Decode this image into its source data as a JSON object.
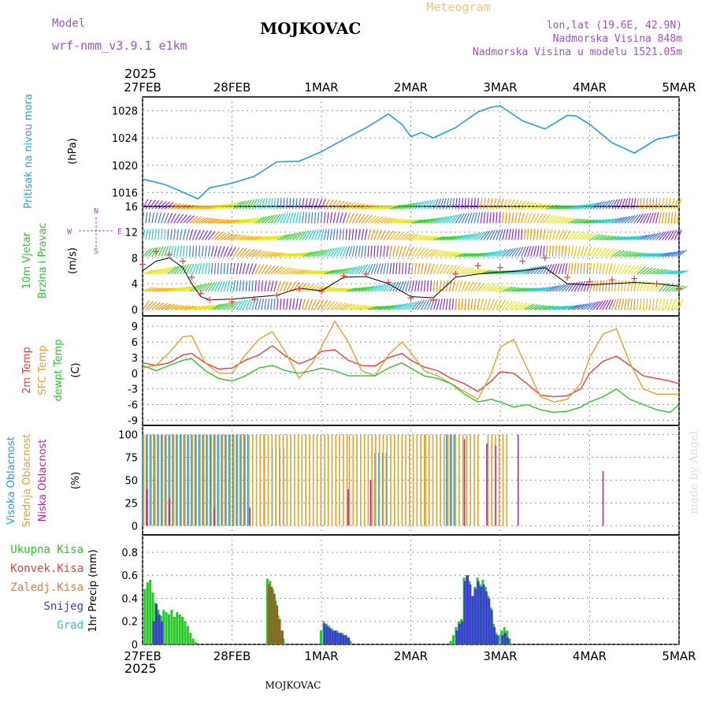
{
  "header": {
    "station": "MOJKOVAC",
    "meteogram_label": "Meteogram",
    "model_label": "Model",
    "model_name": "wrf-nmm_v3.9.1 e1km",
    "coords": "lon,lat (19.6E, 42.9N)",
    "altitude": "Nadmorska Visina 848m",
    "model_altitude": "Nadmorska Visina u modelu 1521.05m",
    "year_top": "2025",
    "year_bottom": "2025",
    "footer_station": "MOJKOVAC",
    "credit": "made by Angel"
  },
  "colors": {
    "pressure": "#1ea0e6",
    "temp2m": "#f03c3c",
    "sfc": "#e6a028",
    "dew": "#28c828",
    "high_cloud": "#1ea0e6",
    "mid_cloud": "#e6a028",
    "low_cloud": "#c81e96",
    "model": "#a050d2",
    "meteogram": "#e6c878",
    "total_precip": "#28c828",
    "conv_precip": "#f03c3c",
    "frz_precip": "#f07832",
    "snow": "#3c3cdc",
    "hail": "#28c8c8"
  },
  "chart_data": [
    {
      "type": "line",
      "panel": "pressure",
      "ylabel": [
        "Pritisak na nivou mora",
        "(hPa)"
      ],
      "yticks": [
        1016,
        1020,
        1024,
        1028
      ],
      "ylim": [
        1014,
        1030
      ],
      "xticks": [
        "27FEB",
        "28FEB",
        "1MAR",
        "2MAR",
        "3MAR",
        "4MAR",
        "5MAR"
      ],
      "x_days": [
        0,
        0.25,
        0.5,
        0.62,
        0.75,
        1.0,
        1.25,
        1.5,
        1.75,
        2.0,
        2.25,
        2.5,
        2.75,
        2.9,
        3.0,
        3.12,
        3.25,
        3.5,
        3.75,
        3.9,
        4.0,
        4.25,
        4.5,
        4.75,
        4.85,
        5.0,
        5.25,
        5.5,
        5.75,
        6.0
      ],
      "series": [
        {
          "values": [
            1018.0,
            1017.2,
            1015.8,
            1015.1,
            1016.7,
            1017.4,
            1018.4,
            1020.5,
            1020.6,
            1022.0,
            1023.8,
            1025.5,
            1027.5,
            1026.0,
            1024.2,
            1024.8,
            1024.0,
            1025.5,
            1027.8,
            1028.5,
            1028.7,
            1026.5,
            1025.3,
            1027.3,
            1027.2,
            1026.0,
            1023.3,
            1021.8,
            1023.8,
            1024.5
          ]
        }
      ]
    },
    {
      "type": "line",
      "panel": "wind",
      "ylabel": [
        "10m Vjetar",
        "Brzina i Pravac",
        "(m/s)"
      ],
      "compass": [
        "N",
        "W",
        "E",
        "S"
      ],
      "yticks": [
        0,
        4,
        8,
        12,
        16
      ],
      "ylim": [
        -1,
        16
      ],
      "x_days": [
        0,
        0.15,
        0.3,
        0.45,
        0.55,
        0.65,
        0.75,
        1.0,
        1.25,
        1.5,
        1.75,
        2.0,
        2.25,
        2.5,
        2.75,
        3.0,
        3.25,
        3.5,
        3.75,
        4.0,
        4.25,
        4.5,
        4.75,
        5.0,
        5.25,
        5.5,
        5.75,
        6.0
      ],
      "series": [
        {
          "name": "mean",
          "values": [
            6.0,
            7.5,
            8.0,
            6.5,
            4.0,
            2.0,
            1.5,
            1.6,
            1.9,
            2.2,
            3.3,
            2.9,
            5.0,
            5.1,
            4.0,
            2.0,
            1.8,
            5.0,
            5.5,
            5.8,
            6.0,
            6.5,
            4.0,
            3.8,
            4.0,
            4.2,
            4.0,
            3.6
          ]
        },
        {
          "name": "gust",
          "values": [
            7.0,
            9.0,
            8.5,
            7.5,
            5.0,
            2.5,
            1.5,
            1.2,
            1.6,
            2.2,
            3.2,
            2.8,
            5.2,
            5.5,
            4.2,
            1.8,
            1.5,
            5.5,
            6.8,
            6.5,
            7.5,
            8.0,
            5.0,
            4.3,
            4.6,
            4.8,
            4.0,
            3.2
          ]
        }
      ]
    },
    {
      "type": "line",
      "panel": "temperature",
      "ylabel": [
        "2m Temp",
        "SFC Temp",
        "dewpt Temp",
        "(C)"
      ],
      "yticks": [
        -9,
        -6,
        -3,
        0,
        3,
        6,
        9
      ],
      "ylim": [
        -10,
        11
      ],
      "x_days": [
        0,
        0.15,
        0.3,
        0.45,
        0.55,
        0.7,
        0.85,
        1.0,
        1.15,
        1.3,
        1.45,
        1.6,
        1.75,
        1.9,
        2.0,
        2.15,
        2.3,
        2.45,
        2.6,
        2.75,
        2.9,
        3.0,
        3.15,
        3.3,
        3.45,
        3.6,
        3.75,
        3.9,
        4.0,
        4.15,
        4.3,
        4.45,
        4.6,
        4.75,
        4.9,
        5.0,
        5.15,
        5.3,
        5.45,
        5.6,
        5.75,
        5.9,
        6.0
      ],
      "series": [
        {
          "name": "2m Temp",
          "values": [
            2.0,
            1.5,
            2.0,
            3.5,
            3.8,
            2.0,
            0.8,
            1.0,
            2.5,
            3.5,
            5.3,
            3.3,
            1.8,
            2.8,
            4.2,
            4.5,
            2.5,
            1.5,
            1.4,
            3.0,
            3.8,
            2.5,
            1.2,
            0.5,
            -1.0,
            -2.0,
            -3.5,
            -1.5,
            0.3,
            0.0,
            -2.0,
            -4.2,
            -4.5,
            -4.3,
            -3.0,
            0.0,
            2.3,
            3.3,
            1.5,
            -0.5,
            -1.0,
            -1.5,
            -2.0
          ]
        },
        {
          "name": "SFC Temp",
          "values": [
            1.0,
            1.5,
            4.0,
            7.0,
            7.2,
            2.0,
            0.0,
            0.0,
            3.5,
            6.5,
            8.0,
            4.0,
            -1.0,
            2.0,
            5.0,
            10.0,
            6.0,
            0.5,
            -0.5,
            3.5,
            6.0,
            4.0,
            0.5,
            -0.5,
            -2.0,
            -3.5,
            -5.0,
            0.0,
            5.0,
            6.5,
            1.0,
            -4.5,
            -5.5,
            -5.0,
            -2.0,
            3.0,
            7.5,
            8.5,
            2.0,
            -3.0,
            -4.0,
            -4.0,
            -4.0
          ]
        },
        {
          "name": "dewpt Temp",
          "values": [
            1.5,
            0.5,
            1.5,
            2.5,
            2.8,
            0.5,
            -1.0,
            -1.5,
            -0.5,
            1.0,
            1.5,
            0.5,
            0.0,
            0.5,
            1.0,
            0.5,
            -0.5,
            -0.5,
            -0.5,
            1.0,
            2.0,
            1.0,
            -0.5,
            -1.0,
            -2.0,
            -4.0,
            -5.5,
            -5.0,
            -5.5,
            -6.5,
            -6.0,
            -7.0,
            -7.5,
            -7.3,
            -6.5,
            -5.5,
            -4.5,
            -3.0,
            -5.0,
            -6.0,
            -7.0,
            -7.5,
            -6.0
          ]
        }
      ]
    },
    {
      "type": "bar",
      "panel": "cloud",
      "ylabel": [
        "Visoka Oblacnost",
        "Srednja Oblacnost",
        "Niska Oblacnost",
        "(%)"
      ],
      "yticks": [
        0,
        25,
        50,
        75,
        100
      ],
      "ylim": [
        -10,
        110
      ],
      "series": [
        {
          "name": "Visoka Oblacnost",
          "segments": [
            [
              0.0,
              1.2,
              100
            ],
            [
              1.45,
              1.6,
              85
            ],
            [
              2.6,
              2.75,
              80
            ],
            [
              3.4,
              3.5,
              100
            ]
          ]
        },
        {
          "name": "Srednja Oblacnost",
          "segments": [
            [
              0.0,
              1.35,
              100
            ],
            [
              1.35,
              2.3,
              100
            ],
            [
              2.3,
              3.15,
              100
            ],
            [
              3.15,
              3.75,
              100
            ],
            [
              3.85,
              4.1,
              100
            ]
          ]
        },
        {
          "name": "Niska Oblacnost",
          "spikes": [
            [
              0.05,
              40
            ],
            [
              0.3,
              30
            ],
            [
              0.8,
              20
            ],
            [
              1.2,
              20
            ],
            [
              2.3,
              40
            ],
            [
              2.55,
              50
            ],
            [
              3.6,
              95
            ],
            [
              3.85,
              90
            ],
            [
              3.95,
              88
            ],
            [
              4.2,
              100
            ],
            [
              5.15,
              60
            ]
          ]
        }
      ]
    },
    {
      "type": "bar",
      "panel": "precip",
      "ylabel": [
        "1hr Precip (mm)"
      ],
      "legend": [
        "Ukupna Kisa",
        "Konvek.Kisa",
        "Zaledj.Kisa",
        "Snijeg",
        "Grad"
      ],
      "yticks": [
        0,
        0.2,
        0.4,
        0.6,
        0.8
      ],
      "ylim": [
        0,
        0.95
      ],
      "x_days": [
        0.03,
        0.06,
        0.09,
        0.12,
        0.15,
        0.18,
        0.21,
        0.24,
        0.27,
        0.3,
        0.33,
        0.36,
        0.39,
        0.42,
        0.45,
        0.48,
        0.51,
        0.54,
        0.57,
        0.6,
        0.63,
        1.4,
        1.43,
        1.46,
        1.49,
        1.52,
        1.55,
        1.58,
        2.0,
        2.03,
        2.06,
        2.09,
        2.12,
        2.15,
        2.18,
        2.21,
        2.24,
        2.27,
        2.3,
        2.33,
        2.36,
        3.45,
        3.48,
        3.51,
        3.54,
        3.57,
        3.6,
        3.63,
        3.66,
        3.69,
        3.72,
        3.75,
        3.78,
        3.81,
        3.84,
        3.87,
        3.9,
        3.93,
        3.96,
        3.99,
        4.02,
        4.05,
        4.08,
        4.11
      ],
      "series": [
        {
          "name": "Ukupna Kisa",
          "values": [
            0.48,
            0.54,
            0.56,
            0.45,
            0.36,
            0.3,
            0.25,
            0.3,
            0.28,
            0.26,
            0.3,
            0.24,
            0.28,
            0.26,
            0.24,
            0.2,
            0.16,
            0.1,
            0.05,
            0.02,
            0.0,
            0.57,
            0.55,
            0.48,
            0.38,
            0.25,
            0.12,
            0.05,
            0.12,
            0.2,
            0.18,
            0.16,
            0.14,
            0.12,
            0.12,
            0.1,
            0.1,
            0.08,
            0.06,
            0.03,
            0.0,
            0.03,
            0.08,
            0.15,
            0.2,
            0.22,
            0.58,
            0.6,
            0.55,
            0.42,
            0.5,
            0.58,
            0.52,
            0.56,
            0.5,
            0.42,
            0.32,
            0.18,
            0.1,
            0.08,
            0.12,
            0.15,
            0.12,
            0.05
          ]
        },
        {
          "name": "Snijeg",
          "values": [
            0.0,
            0.0,
            0.0,
            0.2,
            0.35,
            0.26,
            0.2,
            0.0,
            0.0,
            0.0,
            0.0,
            0.0,
            0.0,
            0.0,
            0.0,
            0.0,
            0.0,
            0.0,
            0.0,
            0.0,
            0.0,
            0.0,
            0.0,
            0.0,
            0.0,
            0.0,
            0.0,
            0.0,
            0.0,
            0.18,
            0.16,
            0.14,
            0.12,
            0.12,
            0.1,
            0.1,
            0.08,
            0.08,
            0.06,
            0.0,
            0.0,
            0.0,
            0.0,
            0.12,
            0.18,
            0.2,
            0.55,
            0.6,
            0.52,
            0.42,
            0.48,
            0.55,
            0.5,
            0.52,
            0.46,
            0.4,
            0.3,
            0.15,
            0.08,
            0.0,
            0.08,
            0.1,
            0.06,
            0.0
          ]
        },
        {
          "name": "Zaledj.Kisa",
          "values": [
            0.0,
            0.0,
            0.0,
            0.0,
            0.0,
            0.0,
            0.0,
            0.0,
            0.0,
            0.0,
            0.0,
            0.0,
            0.0,
            0.0,
            0.0,
            0.0,
            0.0,
            0.0,
            0.0,
            0.0,
            0.0,
            0.52,
            0.5,
            0.44,
            0.34,
            0.22,
            0.12,
            0.0,
            0.0,
            0.0,
            0.0,
            0.0,
            0.0,
            0.0,
            0.0,
            0.0,
            0.0,
            0.0,
            0.0,
            0.0,
            0.0,
            0.0,
            0.0,
            0.0,
            0.0,
            0.0,
            0.0,
            0.0,
            0.0,
            0.0,
            0.0,
            0.0,
            0.0,
            0.0,
            0.0,
            0.0,
            0.0,
            0.0,
            0.0,
            0.0,
            0.0,
            0.0,
            0.0,
            0.0
          ]
        }
      ]
    }
  ]
}
